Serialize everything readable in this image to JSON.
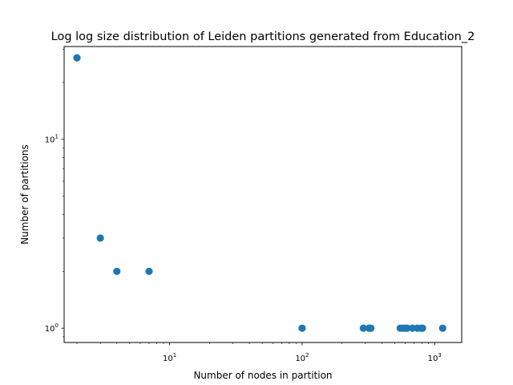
{
  "chart_data": {
    "type": "scatter",
    "title": "Log log size distribution of Leiden partitions generated from Education_2",
    "xlabel": "Number of nodes in partition",
    "ylabel": "Number of partitions",
    "xscale": "log",
    "yscale": "log",
    "xlim": [
      1.6,
      1600
    ],
    "ylim": [
      0.84,
      31
    ],
    "grid": false,
    "marker_color": "#1f77b4",
    "x_ticks": [
      {
        "value": 10,
        "base": "10",
        "exp": "1"
      },
      {
        "value": 100,
        "base": "10",
        "exp": "2"
      },
      {
        "value": 1000,
        "base": "10",
        "exp": "3"
      }
    ],
    "y_ticks": [
      {
        "value": 1,
        "base": "10",
        "exp": "0"
      },
      {
        "value": 10,
        "base": "10",
        "exp": "1"
      }
    ],
    "points": [
      {
        "x": 2,
        "y": 27
      },
      {
        "x": 3,
        "y": 3
      },
      {
        "x": 4,
        "y": 2
      },
      {
        "x": 7,
        "y": 2
      },
      {
        "x": 100,
        "y": 1
      },
      {
        "x": 290,
        "y": 1
      },
      {
        "x": 320,
        "y": 1
      },
      {
        "x": 330,
        "y": 1
      },
      {
        "x": 550,
        "y": 1
      },
      {
        "x": 580,
        "y": 1
      },
      {
        "x": 600,
        "y": 1
      },
      {
        "x": 620,
        "y": 1
      },
      {
        "x": 680,
        "y": 1
      },
      {
        "x": 740,
        "y": 1
      },
      {
        "x": 790,
        "y": 1
      },
      {
        "x": 810,
        "y": 1
      },
      {
        "x": 1150,
        "y": 1
      }
    ]
  }
}
